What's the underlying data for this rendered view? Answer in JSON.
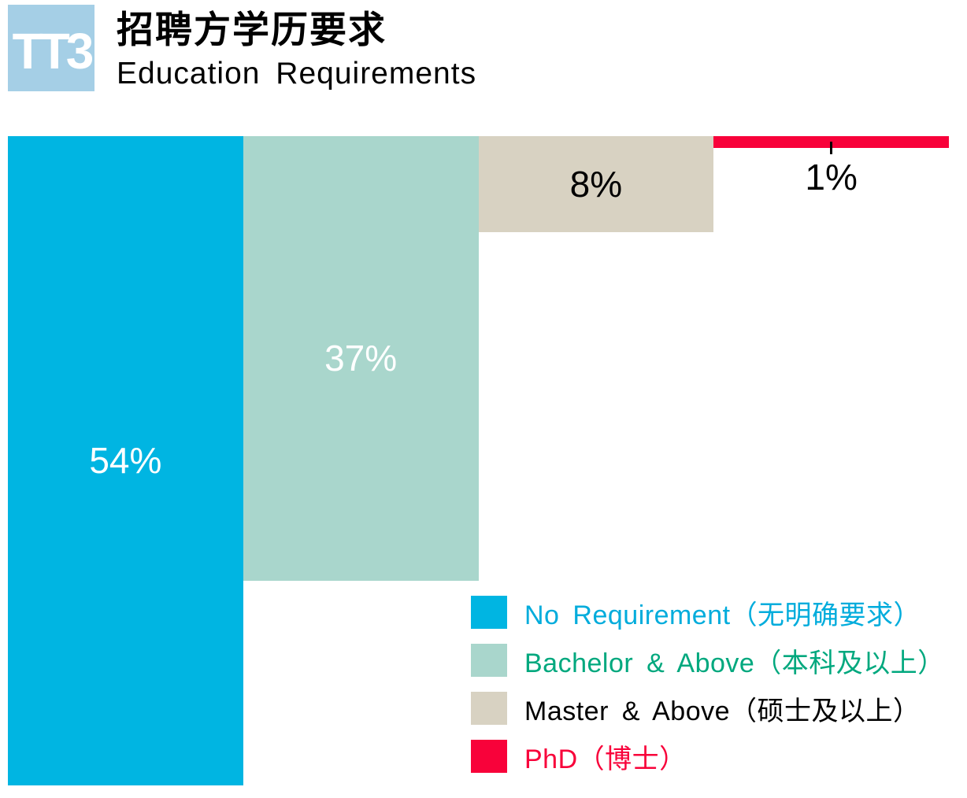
{
  "logo": {
    "text": "TT3",
    "bg_color": "#A5CFE6",
    "text_color": "#FFFFFF"
  },
  "header": {
    "title_zh": "招聘方学历要求",
    "subtitle_en": "Education Requirements"
  },
  "chart_data": {
    "type": "bar",
    "orientation": "vertical-top-anchored",
    "title": "招聘方学历要求 (Education Requirements)",
    "categories": [
      "No Requirement（无明确要求）",
      "Bachelor & Above（本科及以上）",
      "Master & Above（硕士及以上）",
      "PhD（博士）"
    ],
    "values": [
      54,
      37,
      8,
      1
    ],
    "value_labels": [
      "54%",
      "37%",
      "8%",
      "1%"
    ],
    "unit": "%",
    "colors": [
      "#00B5E2",
      "#A9D6CC",
      "#D8D2C2",
      "#F8023A"
    ],
    "label_colors": [
      "#FFFFFF",
      "#FFFFFF",
      "#000000",
      "#000000"
    ],
    "axis": "none",
    "grid": false,
    "legend_position": "bottom-right"
  },
  "legend": {
    "items": [
      {
        "label": "No Requirement（无明确要求）",
        "swatch": "#00B5E2",
        "text_color": "#00ACDC"
      },
      {
        "label": "Bachelor & Above（本科及以上）",
        "swatch": "#A9D6CC",
        "text_color": "#00A87E"
      },
      {
        "label": "Master & Above（硕士及以上）",
        "swatch": "#D8D2C2",
        "text_color": "#000000"
      },
      {
        "label": "PhD（博士）",
        "swatch": "#F8023A",
        "text_color": "#F8023A"
      }
    ]
  }
}
